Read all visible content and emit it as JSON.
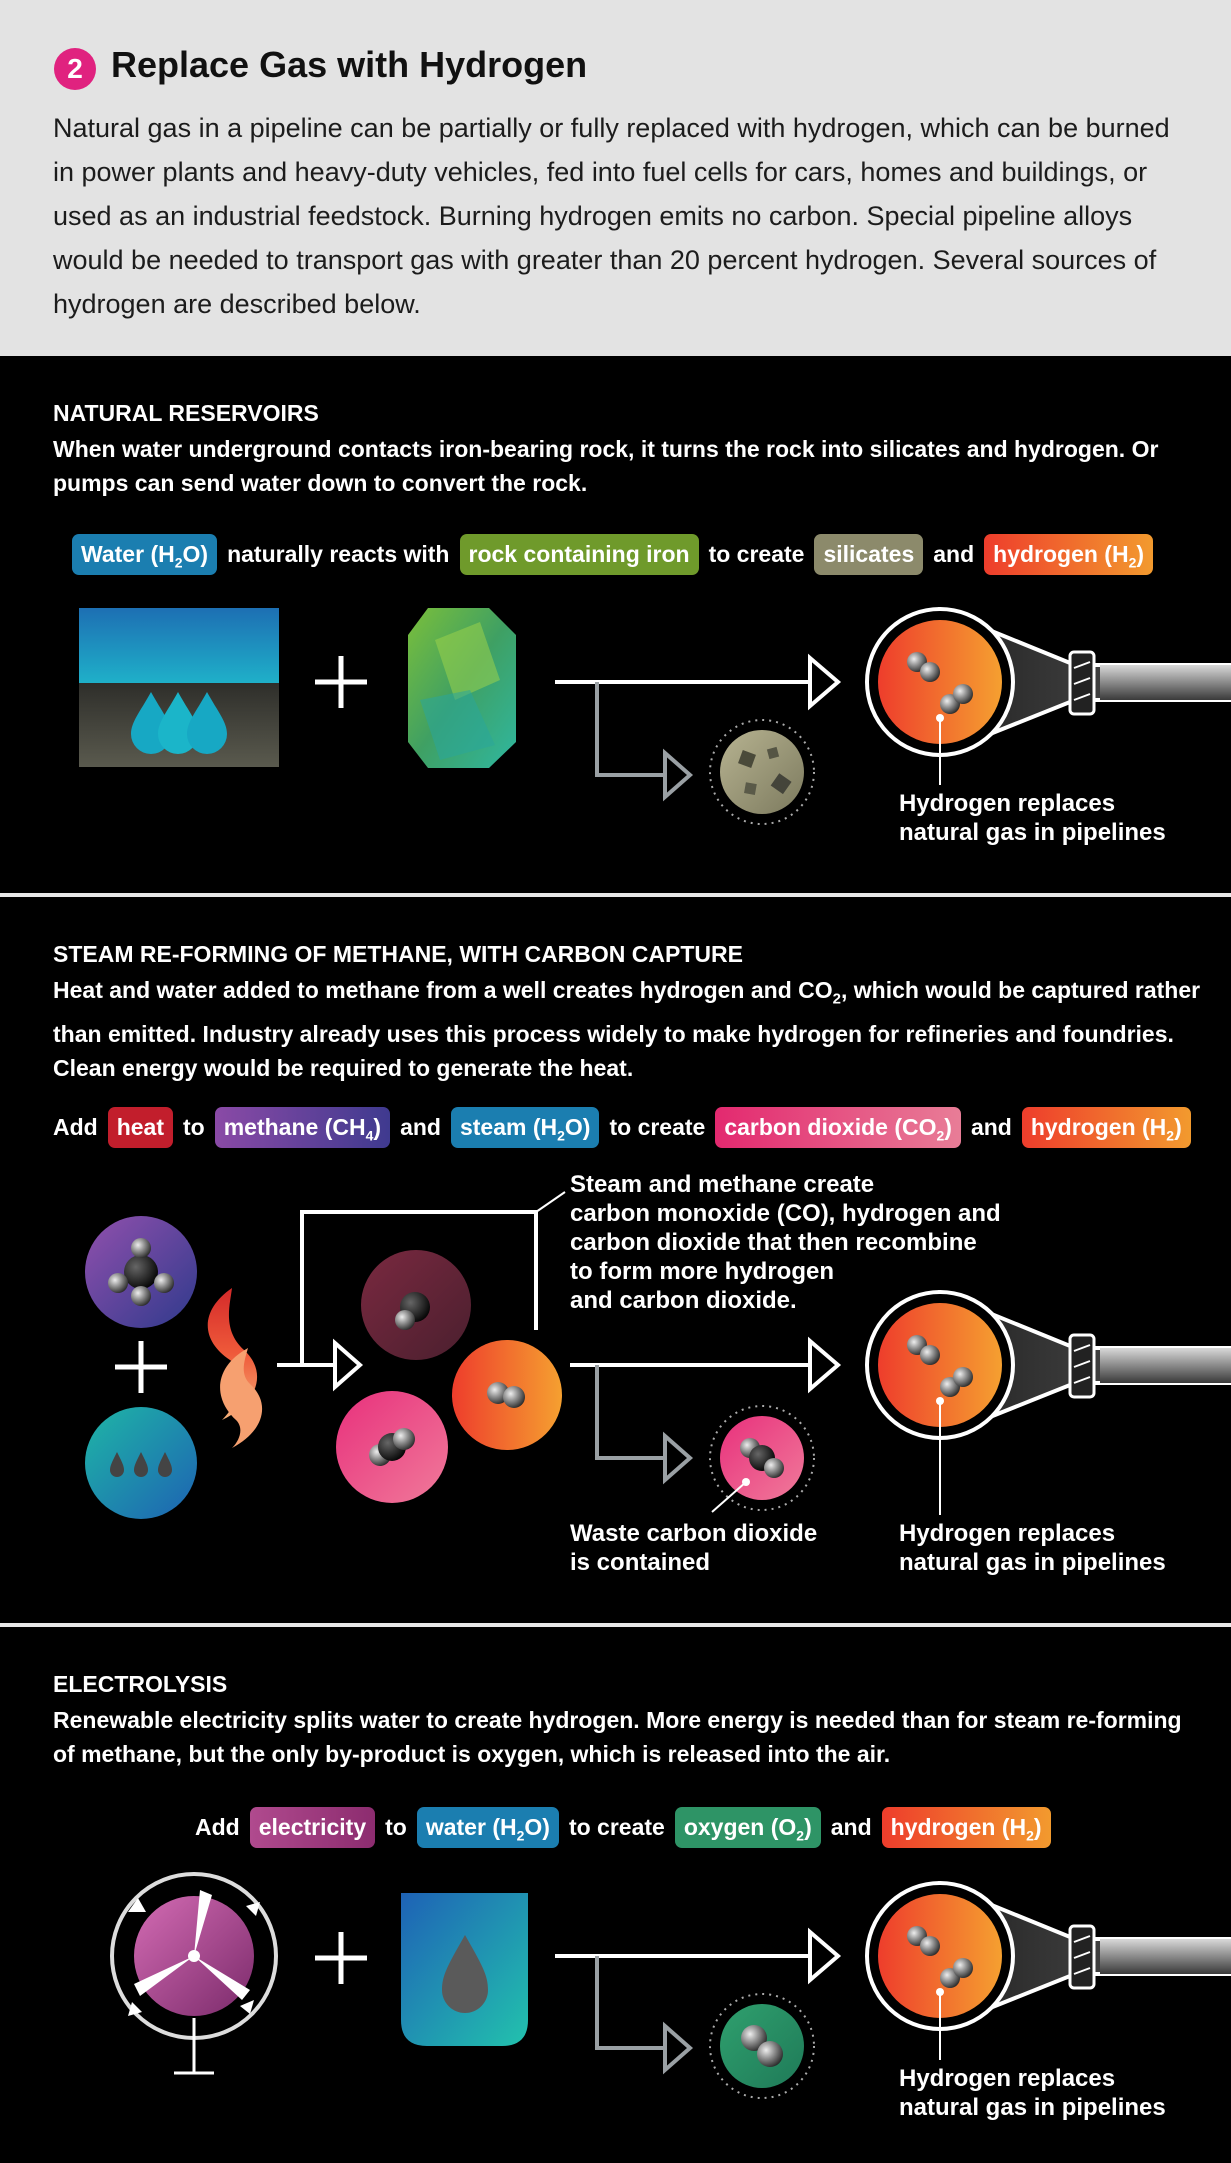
{
  "header": {
    "number": "2",
    "title": "Replace Gas with Hydrogen",
    "body": "Natural gas in a pipeline can be partially or fully replaced with hydrogen, which can be burned in power plants and heavy-duty vehicles, fed into fuel cells for cars, homes and buildings, or used as an industrial feedstock. Burning hydrogen emits no carbon. Special pipeline alloys would be needed to transport gas with greater than 20 percent hydrogen. Several sources of hydrogen are described below."
  },
  "sections": [
    {
      "title": "NATURAL RESERVOIRS",
      "description": "When water underground contacts iron-bearing rock, it turns the rock into silicates and hydrogen. Or pumps can send water down to convert the rock.",
      "equation": {
        "pills": [
          {
            "pre": "Water (H",
            "sub": "2",
            "post": "O)",
            "color": "#1b7eb0"
          },
          {
            "pre": "rock containing iron",
            "sub": "",
            "post": "",
            "color": "#6f9a2b"
          },
          {
            "pre": "silicates",
            "sub": "",
            "post": "",
            "color": "#8c8a6b"
          },
          {
            "pre": "hydrogen (H",
            "sub": "2",
            "post": ")",
            "color": "#ee5a2c"
          }
        ],
        "words": [
          "naturally reacts with",
          "to create",
          "and"
        ]
      },
      "caption": [
        "Hydrogen replaces",
        "natural gas in pipelines"
      ]
    },
    {
      "title": "STEAM RE-FORMING OF METHANE, WITH CARBON CAPTURE",
      "description": {
        "pre": "Heat and water added to methane from a well creates hydrogen and CO",
        "sub": "2",
        "post": ", which would be captured rather than emitted. Industry already uses this process widely to make hydrogen for refineries and foundries. Clean energy would be required to generate the heat."
      },
      "equation": {
        "lead": "Add",
        "pills": [
          {
            "pre": "heat",
            "sub": "",
            "post": "",
            "color": "#c21e2c"
          },
          {
            "pre": "methane (CH",
            "sub": "4",
            "post": ")",
            "color": "#6b3d9a"
          },
          {
            "pre": "steam (H",
            "sub": "2",
            "post": "O)",
            "color": "#1b7eb0"
          },
          {
            "pre": "carbon dioxide (CO",
            "sub": "2",
            "post": ")",
            "color": "#e3397a"
          },
          {
            "pre": "hydrogen (H",
            "sub": "2",
            "post": ")",
            "color": "#ee5a2c"
          }
        ],
        "words": [
          "to",
          "and",
          "to create",
          "and"
        ]
      },
      "note": [
        "Steam and methane create",
        "carbon monoxide (CO), hydrogen and",
        "carbon dioxide that then recombine",
        "to form more hydrogen",
        "and carbon dioxide."
      ],
      "waste_caption": [
        "Waste carbon dioxide",
        "is contained"
      ],
      "caption": [
        "Hydrogen replaces",
        "natural gas in pipelines"
      ]
    },
    {
      "title": "ELECTROLYSIS",
      "description": "Renewable electricity splits water to create hydrogen. More energy is needed than for steam re-forming of methane, but the only by-product is oxygen, which is released into the air.",
      "equation": {
        "lead": "Add",
        "pills": [
          {
            "pre": "electricity",
            "sub": "",
            "post": "",
            "color": "#a23c80"
          },
          {
            "pre": "water (H",
            "sub": "2",
            "post": "O)",
            "color": "#1b7eb0"
          },
          {
            "pre": "oxygen (O",
            "sub": "2",
            "post": ")",
            "color": "#2e9466"
          },
          {
            "pre": "hydrogen (H",
            "sub": "2",
            "post": ")",
            "color": "#ee5a2c"
          }
        ],
        "words": [
          "to",
          "to create",
          "and"
        ]
      },
      "caption": [
        "Hydrogen replaces",
        "natural gas in pipelines"
      ]
    }
  ]
}
